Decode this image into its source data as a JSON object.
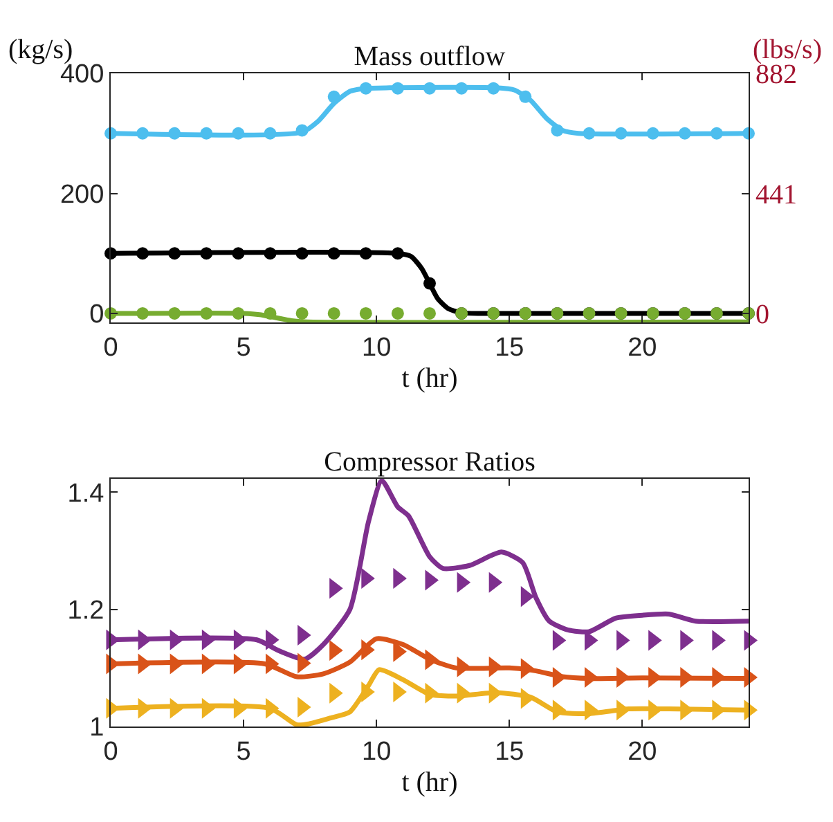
{
  "chart_data": [
    {
      "type": "line",
      "title": "Mass outflow",
      "xlabel": "t (hr)",
      "ylabel": "(kg/s)",
      "y2label": "(lbs/s)",
      "xlim": [
        0,
        24
      ],
      "xticks": [
        0,
        5,
        10,
        15,
        20
      ],
      "ylim": [
        -15,
        400
      ],
      "yticks": [
        0,
        200,
        400
      ],
      "y2lim": [
        -33.08,
        882
      ],
      "y2ticks": [
        0,
        441,
        882
      ],
      "grid": false,
      "series": [
        {
          "marker": "none",
          "color": "#4dbeee",
          "x": [
            0,
            7.2,
            7.8,
            8.4,
            9,
            9.6,
            10.5,
            14.5,
            15.2,
            15.8,
            16.4,
            17,
            17.6,
            24
          ],
          "values": [
            300,
            302,
            320,
            350,
            370,
            375,
            376,
            376,
            372,
            355,
            325,
            305,
            300,
            300
          ]
        },
        {
          "marker": "none",
          "color": "#000000",
          "x": [
            0,
            10.8,
            11.3,
            11.7,
            12,
            12.3,
            12.7,
            13.2,
            14,
            24
          ],
          "values": [
            100,
            100,
            95,
            75,
            50,
            25,
            8,
            1,
            0,
            0
          ]
        },
        {
          "marker": "none",
          "color": "#77ac30",
          "x": [
            0,
            5,
            5.6,
            6.2,
            6.8,
            7.4,
            24
          ],
          "values": [
            0,
            0,
            -2,
            -7,
            -12,
            -14,
            -14
          ]
        },
        {
          "type": "scatter",
          "marker": "circle",
          "color": "#4dbeee",
          "x": [
            0,
            1.2,
            2.4,
            3.6,
            4.8,
            6,
            7.2,
            8.4,
            9.6,
            10.8,
            12,
            13.2,
            14.4,
            15.6,
            16.8,
            18,
            19.2,
            20.4,
            21.6,
            22.8,
            24
          ],
          "values": [
            300,
            300,
            300,
            300,
            300,
            300,
            305,
            361,
            375,
            375,
            375,
            375,
            375,
            361,
            305,
            300,
            300,
            300,
            300,
            300,
            300
          ]
        },
        {
          "type": "scatter",
          "marker": "circle",
          "color": "#000000",
          "x": [
            0,
            1.2,
            2.4,
            3.6,
            4.8,
            6,
            7.2,
            8.4,
            9.6,
            10.8,
            12,
            13.2,
            14.4,
            15.6,
            16.8,
            18,
            19.2,
            20.4,
            21.6,
            22.8,
            24
          ],
          "values": [
            100,
            100,
            100,
            100,
            100,
            100,
            100,
            100,
            100,
            100,
            50,
            0,
            0,
            0,
            0,
            0,
            0,
            0,
            0,
            0,
            0
          ]
        },
        {
          "type": "scatter",
          "marker": "circle",
          "color": "#77ac30",
          "x": [
            0,
            1.2,
            2.4,
            3.6,
            4.8,
            6,
            7.2,
            8.4,
            9.6,
            10.8,
            12,
            13.2,
            14.4,
            15.6,
            16.8,
            18,
            19.2,
            20.4,
            21.6,
            22.8,
            24
          ],
          "values": [
            0,
            0,
            0,
            0,
            0,
            0,
            0,
            0,
            0,
            0,
            0,
            0,
            0,
            0,
            0,
            0,
            0,
            0,
            0,
            0,
            0
          ]
        }
      ]
    },
    {
      "type": "line",
      "title": "Compressor Ratios",
      "xlabel": "t (hr)",
      "xlim": [
        0,
        24
      ],
      "xticks": [
        0,
        5,
        10,
        15,
        20
      ],
      "ylim": [
        1,
        1.423
      ],
      "yticks": [
        1,
        1.2,
        1.4
      ],
      "grid": false,
      "series": [
        {
          "marker": "none",
          "color": "#7e2f8e",
          "x": [
            0,
            5.5,
            6.3,
            7.3,
            8,
            9,
            9.7,
            10.2,
            10.8,
            11.2,
            12,
            12.5,
            13.5,
            14.7,
            15.5,
            16,
            16.5,
            17.2,
            18,
            19,
            20,
            21,
            22,
            24
          ],
          "values": [
            1.148,
            1.148,
            1.13,
            1.115,
            1.14,
            1.2,
            1.35,
            1.42,
            1.375,
            1.36,
            1.29,
            1.27,
            1.275,
            1.298,
            1.28,
            1.22,
            1.18,
            1.165,
            1.162,
            1.185,
            1.19,
            1.192,
            1.18,
            1.18
          ]
        },
        {
          "marker": "none",
          "color": "#d95319",
          "x": [
            0,
            5.8,
            7,
            8,
            9,
            10,
            11,
            12,
            13,
            15,
            16,
            17,
            18,
            20,
            24
          ],
          "values": [
            1.107,
            1.107,
            1.085,
            1.09,
            1.11,
            1.15,
            1.14,
            1.115,
            1.1,
            1.1,
            1.095,
            1.085,
            1.082,
            1.083,
            1.082
          ]
        },
        {
          "marker": "none",
          "color": "#edb120",
          "x": [
            0,
            6,
            7,
            7.5,
            8.3,
            9,
            9.7,
            10.1,
            11,
            12,
            13,
            14.5,
            15.8,
            16.8,
            18,
            19.5,
            21,
            24
          ],
          "values": [
            1.031,
            1.031,
            1.003,
            1.005,
            1.015,
            1.025,
            1.07,
            1.097,
            1.08,
            1.055,
            1.052,
            1.058,
            1.05,
            1.025,
            1.022,
            1.03,
            1.03,
            1.028
          ]
        },
        {
          "type": "scatter",
          "marker": "triangle",
          "color": "#7e2f8e",
          "x": [
            0,
            1.2,
            2.4,
            3.6,
            4.8,
            6,
            7.2,
            8.4,
            9.6,
            10.8,
            12,
            13.2,
            14.4,
            15.6,
            16.8,
            18,
            19.2,
            20.4,
            21.6,
            22.8,
            24
          ],
          "values": [
            1.148,
            1.148,
            1.148,
            1.148,
            1.148,
            1.148,
            1.156,
            1.236,
            1.253,
            1.253,
            1.25,
            1.246,
            1.246,
            1.222,
            1.147,
            1.147,
            1.147,
            1.147,
            1.147,
            1.147,
            1.147
          ]
        },
        {
          "type": "scatter",
          "marker": "triangle",
          "color": "#d95319",
          "x": [
            0,
            1.2,
            2.4,
            3.6,
            4.8,
            6,
            7.2,
            8.4,
            9.6,
            10.8,
            12,
            13.2,
            14.4,
            15.6,
            16.8,
            18,
            19.2,
            20.4,
            21.6,
            22.8,
            24
          ],
          "values": [
            1.107,
            1.107,
            1.107,
            1.107,
            1.107,
            1.107,
            1.108,
            1.13,
            1.131,
            1.128,
            1.114,
            1.102,
            1.102,
            1.099,
            1.084,
            1.084,
            1.084,
            1.084,
            1.084,
            1.084,
            1.084
          ]
        },
        {
          "type": "scatter",
          "marker": "triangle",
          "color": "#edb120",
          "x": [
            0,
            1.2,
            2.4,
            3.6,
            4.8,
            6,
            7.2,
            8.4,
            9.6,
            10.8,
            12,
            13.2,
            14.4,
            15.6,
            16.8,
            18,
            19.2,
            20.4,
            21.6,
            22.8,
            24
          ],
          "values": [
            1.031,
            1.031,
            1.031,
            1.031,
            1.031,
            1.031,
            1.033,
            1.057,
            1.059,
            1.059,
            1.057,
            1.057,
            1.057,
            1.048,
            1.028,
            1.028,
            1.028,
            1.028,
            1.028,
            1.028,
            1.028
          ]
        }
      ]
    }
  ]
}
